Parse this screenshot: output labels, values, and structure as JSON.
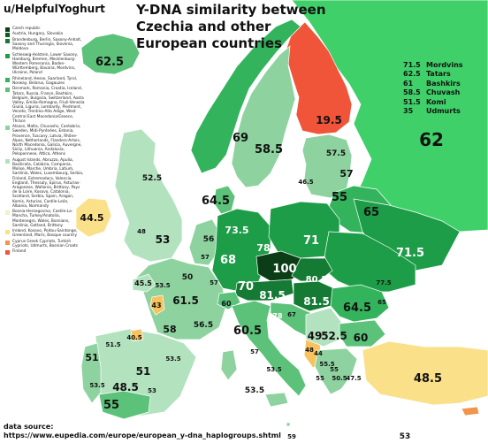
{
  "author": "u/HelpfulYoghurt",
  "title_lines": [
    "Y-DNA similarity between",
    "Czechia and other",
    "European countries"
  ],
  "colors": {
    "sea": "#ffffff",
    "c100": "#0b3d17",
    "c80": "#147a34",
    "c70": "#1e9d48",
    "c65": "#33b45c",
    "c60": "#5cc27a",
    "c55": "#8ed39f",
    "c50": "#b3e2bf",
    "c45": "#fbe08a",
    "c40": "#f8c25e",
    "c35": "#f0954a",
    "c20": "#f0553a",
    "russia": "#3fd06a"
  },
  "legend": [
    {
      "label": "Czech republic",
      "color": "#0b3d17"
    },
    {
      "label": "Austria, Hungary, Slovakia",
      "color": "#0f5a25"
    },
    {
      "label": "Brandenburg, Berlin, Saxony-Anhalt, Saxony and Thuringia, Slovenia, Moldova",
      "color": "#147a34"
    },
    {
      "label": "Schleswig-Holstein, Lower Saxony, Hamburg, Bremen, Mecklenburg-Western Pomerania, Baden-Württemberg, Bavaria, Mordvins, Ukraine, Poland",
      "color": "#1e9d48"
    },
    {
      "label": "Rhineland, Hesse, Saarland, Tyrol, Norway, Belarus, Gagauzes",
      "color": "#33b45c"
    },
    {
      "label": "Denmark, Romania, Croatia, Iceland, Tatars, Russia, France, Bashkirs, Belgium, Bulgaria, Switzerland, Aosta Valley, Emilia-Romagna, Friuli-Venezia Giulia, Liguria, Lombardy, Piedmont, Veneto, Trentino-Alto Adige, West Central East Macedonia/Greece, Thrace",
      "color": "#5cc27a"
    },
    {
      "label": "Alsace, Malta, Chuvashs, Cantabria, Sweden, Midi-Pyrénées, Estonia, Provence, Tuscany, Latvia, Rhône-Alpes, Netherlands, Flanders-Artois, North Macedonia, Galicia, Auvergne, Sicily, Lithuania, Andalusia, Peloponnese, Attica, Athens",
      "color": "#8ed39f"
    },
    {
      "label": "August Islands, Abruzzo, Apulia, Basilicata, Calabria, Campania, Molise, Marche, Umbria, Latium, Sardinia, Wales, Luxembourg, Serbia, Finland, Estremadura, Valencia, England, Thessaly, Epirus, Asturias-Aragonese, Wallonia, Brittany, Pays de la Loire, Kosovo, Catalonia, Scotland, Serbia, Spain, Aragon, Komis, Asturias, Castile-León, Albania, Normandy",
      "color": "#b3e2bf"
    },
    {
      "label": "Bosnia-Herzegovina, Castile-La-Mancha, Turkey/Anatolia, Montenegro, Wales, Bosnians, Sardinia, Gotland, Brittany",
      "color": "#e8f5c8"
    },
    {
      "label": "Ireland, Kosovo, Poitou-Saintonge, Greenland, Maris, Basque country",
      "color": "#fbe08a"
    },
    {
      "label": "Cyprus Greek Cypriots, Turkish Cypriots, Udmurts, Bosnian Croats",
      "color": "#f0954a"
    },
    {
      "label": "Finland",
      "color": "#f0553a"
    }
  ],
  "right_list": [
    {
      "value": "71.5",
      "name": "Mordvins"
    },
    {
      "value": "62.5",
      "name": "Tatars"
    },
    {
      "value": "61",
      "name": "Bashkirs"
    },
    {
      "value": "58.5",
      "name": "Chuvash"
    },
    {
      "value": "51.5",
      "name": "Komi"
    },
    {
      "value": "35",
      "name": "Udmurts"
    }
  ],
  "source_lines": [
    "data source:",
    "https://www.eupedia.com/europe/european_y-dna_haplogroups.shtml"
  ],
  "values": {
    "iceland": "62.5",
    "finland": "19.5",
    "russia_big": "62",
    "norway": "69",
    "sweden": "58.5",
    "estonia": "57.5",
    "latvia": "57",
    "lithuania": "55",
    "denmark": "64.5",
    "belarus": "65",
    "scotland": "52.5",
    "ireland": "44.5",
    "england": "53",
    "wales": "48",
    "netherlands": "56",
    "north_germany": "73.5",
    "east_germany": "78",
    "poland": "71",
    "west_germany": "68",
    "rus_south": "71.5",
    "belgium": "57",
    "bavaria": "70",
    "czechia": "100",
    "slovakia": "80.5",
    "austria": "81.5",
    "hungary": "81.5",
    "france_nw": "50",
    "brittany": "45.5",
    "loire": "53.5",
    "france_c": "61.5",
    "alsace": "57",
    "switzerland": "60",
    "poitou": "43",
    "slovenia": "78",
    "croatia": "67",
    "romania": "64.5",
    "moldova": "77.5",
    "mold2": "65",
    "lombardy": "60.5",
    "aquitaine": "58",
    "provence": "56.5",
    "spain_n": "51.5",
    "basque": "40.5",
    "catalonia": "53.5",
    "portugal": "51",
    "castile": "48.5",
    "spain_e": "53.5",
    "andalusia": "55",
    "sardinia": "53",
    "italy_s": "53.5",
    "bosnia": "49",
    "serbia": "52.5",
    "montenegro": "44",
    "albania": "48",
    "bulgaria": "60",
    "macedonia": "55.5",
    "greece_n": "55",
    "greece_s": "50.5",
    "crete": "47.5",
    "turkey": "48.5",
    "gagauz": "65",
    "italy_c": "57",
    "sicily": "53.5",
    "malta": "59",
    "cyprus": "53",
    "small1": "46.5",
    "small2": "55",
    "small3": "51",
    "small4": "48"
  }
}
